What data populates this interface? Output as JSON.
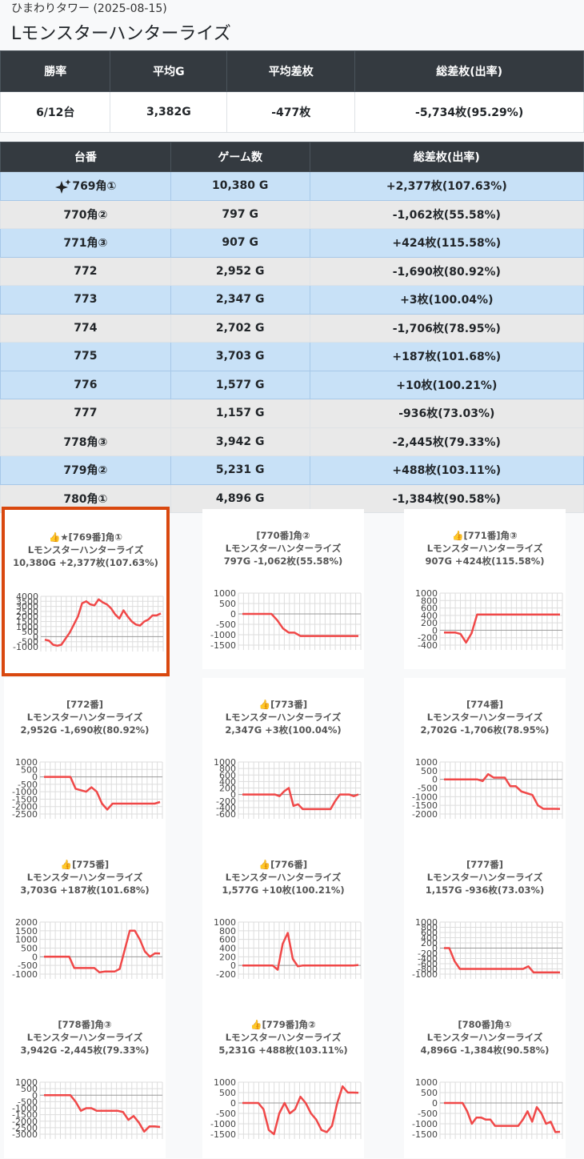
{
  "header": {
    "subtitle": "ひまわりタワー (2025-08-15)",
    "title": "Lモンスターハンターライズ"
  },
  "summary": {
    "columns": [
      "勝率",
      "平均G",
      "平均差枚",
      "総差枚(出率)"
    ],
    "rows": [
      [
        "6/12台",
        "3,382G",
        "-477枚",
        "-5,734枚(95.29%)"
      ]
    ]
  },
  "machines": {
    "columns": [
      "台番",
      "ゲーム数",
      "総差枚(出率)"
    ],
    "rows": [
      [
        "769角①",
        "10,380 G",
        "+2,377枚(107.63%)"
      ],
      [
        "770角②",
        "797 G",
        "-1,062枚(55.58%)"
      ],
      [
        "771角③",
        "907 G",
        "+424枚(115.58%)"
      ],
      [
        "772",
        "2,952 G",
        "-1,690枚(80.92%)"
      ],
      [
        "773",
        "2,347 G",
        "+3枚(100.04%)"
      ],
      [
        "774",
        "2,702 G",
        "-1,706枚(78.95%)"
      ],
      [
        "775",
        "3,703 G",
        "+187枚(101.68%)"
      ],
      [
        "776",
        "1,577 G",
        "+10枚(100.21%)"
      ],
      [
        "777",
        "1,157 G",
        "-936枚(73.03%)"
      ],
      [
        "778角③",
        "3,942 G",
        "-2,445枚(79.33%)"
      ],
      [
        "779角②",
        "5,231 G",
        "+488枚(103.11%)"
      ],
      [
        "780角①",
        "4,896 G",
        "-1,384枚(90.58%)"
      ]
    ]
  },
  "graphs": [
    {
      "title": "👍★[769番]角①",
      "name": "Lモンスターハンターライズ",
      "summary": "10,380G +2,377枚(107.63%)",
      "ylim": [
        -1000,
        4000
      ],
      "yticks": [
        4000,
        3500,
        3000,
        2500,
        2000,
        1500,
        1000,
        500,
        0,
        -500,
        -1000
      ],
      "values": [
        -300,
        -400,
        -800,
        -900,
        -800,
        -200,
        400,
        1200,
        2000,
        3300,
        3500,
        3200,
        3100,
        3700,
        3400,
        3200,
        2800,
        2200,
        1800,
        2600,
        2000,
        1500,
        1200,
        1100,
        1500,
        1700,
        2100,
        2100,
        2300
      ]
    },
    {
      "title": "[770番]角②",
      "name": "Lモンスターハンターライズ",
      "summary": "797G -1,062枚(55.58%)",
      "ylim": [
        -1500,
        1000
      ],
      "yticks": [
        1000,
        500,
        0,
        -500,
        -1000,
        -1500
      ],
      "values": [
        0,
        0,
        0,
        0,
        0,
        0,
        -300,
        -700,
        -900,
        -900,
        -1062,
        -1062,
        -1062,
        -1062,
        -1062,
        -1062,
        -1062,
        -1062,
        -1062,
        -1062,
        -1062
      ]
    },
    {
      "title": "👍[771番]角③",
      "name": "Lモンスターハンターライズ",
      "summary": "907G +424枚(115.58%)",
      "ylim": [
        -400,
        1000
      ],
      "yticks": [
        1000,
        800,
        600,
        400,
        200,
        0,
        -200,
        -400
      ],
      "values": [
        -60,
        -60,
        -60,
        -100,
        -330,
        -80,
        424,
        424,
        424,
        424,
        424,
        424,
        424,
        424,
        424,
        424,
        424,
        424,
        424,
        424,
        424,
        424
      ]
    },
    {
      "title": "[772番]",
      "name": "Lモンスターハンターライズ",
      "summary": "2,952G -1,690枚(80.92%)",
      "ylim": [
        -2500,
        1000
      ],
      "yticks": [
        1000,
        500,
        0,
        -500,
        -1000,
        -1500,
        -2000,
        -2500
      ],
      "values": [
        0,
        0,
        0,
        0,
        0,
        0,
        -800,
        -900,
        -1000,
        -700,
        -1000,
        -1800,
        -2200,
        -1800,
        -1800,
        -1800,
        -1800,
        -1800,
        -1800,
        -1800,
        -1800,
        -1800,
        -1690
      ]
    },
    {
      "title": "👍[773番]",
      "name": "Lモンスターハンターライズ",
      "summary": "2,347G +3枚(100.04%)",
      "ylim": [
        -600,
        1000
      ],
      "yticks": [
        1000,
        800,
        600,
        400,
        200,
        0,
        -200,
        -400,
        -600
      ],
      "values": [
        0,
        0,
        0,
        0,
        0,
        0,
        0,
        0,
        -50,
        100,
        200,
        -350,
        -300,
        -450,
        -450,
        -450,
        -450,
        -450,
        -450,
        -450,
        -200,
        0,
        0,
        0,
        -50,
        3
      ]
    },
    {
      "title": "[774番]",
      "name": "Lモンスターハンターライズ",
      "summary": "2,702G -1,706枚(78.95%)",
      "ylim": [
        -2000,
        1000
      ],
      "yticks": [
        1000,
        500,
        0,
        -500,
        -1000,
        -1500,
        -2000
      ],
      "values": [
        0,
        0,
        0,
        0,
        0,
        0,
        0,
        -100,
        300,
        100,
        100,
        100,
        -400,
        -400,
        -700,
        -800,
        -900,
        -1500,
        -1700,
        -1700,
        -1700,
        -1706
      ]
    },
    {
      "title": "👍[775番]",
      "name": "Lモンスターハンターライズ",
      "summary": "3,703G +187枚(101.68%)",
      "ylim": [
        -1000,
        2000
      ],
      "yticks": [
        2000,
        1500,
        1000,
        500,
        0,
        -500,
        -1000
      ],
      "values": [
        0,
        0,
        0,
        0,
        0,
        0,
        -650,
        -650,
        -650,
        -650,
        -650,
        -900,
        -850,
        -850,
        -850,
        -700,
        400,
        1500,
        1500,
        1000,
        300,
        0,
        200,
        187
      ]
    },
    {
      "title": "👍[776番]",
      "name": "Lモンスターハンターライズ",
      "summary": "1,577G +10枚(100.21%)",
      "ylim": [
        -200,
        1000
      ],
      "yticks": [
        1000,
        800,
        600,
        400,
        200,
        0,
        -200
      ],
      "values": [
        0,
        0,
        0,
        0,
        0,
        0,
        0,
        -100,
        500,
        750,
        150,
        -20,
        0,
        0,
        0,
        0,
        0,
        0,
        0,
        0,
        0,
        0,
        0,
        10
      ]
    },
    {
      "title": "[777番]",
      "name": "Lモンスターハンターライズ",
      "summary": "1,157G -936枚(73.03%)",
      "ylim": [
        -1000,
        1000
      ],
      "yticks": [
        1000,
        800,
        600,
        400,
        200,
        0,
        -200,
        -400,
        -600,
        -800,
        -1000
      ],
      "values": [
        0,
        0,
        -500,
        -800,
        -800,
        -800,
        -800,
        -800,
        -800,
        -800,
        -800,
        -800,
        -800,
        -800,
        -800,
        -800,
        -700,
        -936,
        -936,
        -936,
        -936,
        -936,
        -936
      ]
    },
    {
      "title": "[778番]角③",
      "name": "Lモンスターハンターライズ",
      "summary": "3,942G -2,445枚(79.33%)",
      "ylim": [
        -3000,
        1000
      ],
      "yticks": [
        1000,
        500,
        0,
        -500,
        -1000,
        -1500,
        -2000,
        -2500,
        -3000
      ],
      "values": [
        0,
        0,
        0,
        0,
        0,
        0,
        -500,
        -1200,
        -1000,
        -1000,
        -1200,
        -1200,
        -1200,
        -1200,
        -1200,
        -1300,
        -1900,
        -1600,
        -2100,
        -2800,
        -2400,
        -2400,
        -2445
      ]
    },
    {
      "title": "👍[779番]角②",
      "name": "Lモンスターハンターライズ",
      "summary": "5,231G +488枚(103.11%)",
      "ylim": [
        -1500,
        1000
      ],
      "yticks": [
        1000,
        500,
        0,
        -500,
        -1000,
        -1500
      ],
      "values": [
        0,
        0,
        0,
        0,
        -300,
        -1300,
        -1500,
        -500,
        0,
        -500,
        -300,
        300,
        0,
        -500,
        -800,
        -1300,
        -1400,
        -1100,
        0,
        800,
        500,
        500,
        488
      ]
    },
    {
      "title": "[780番]角①",
      "name": "Lモンスターハンターライズ",
      "summary": "4,896G -1,384枚(90.58%)",
      "ylim": [
        -1500,
        1000
      ],
      "yticks": [
        1000,
        500,
        0,
        -500,
        -1000,
        -1500
      ],
      "values": [
        0,
        0,
        0,
        0,
        0,
        -400,
        -1000,
        -700,
        -700,
        -800,
        -800,
        -1100,
        -1100,
        -1100,
        -1100,
        -1100,
        -1100,
        -800,
        -400,
        -900,
        -200,
        -500,
        -1000,
        -900,
        -1400,
        -1384
      ]
    }
  ]
}
